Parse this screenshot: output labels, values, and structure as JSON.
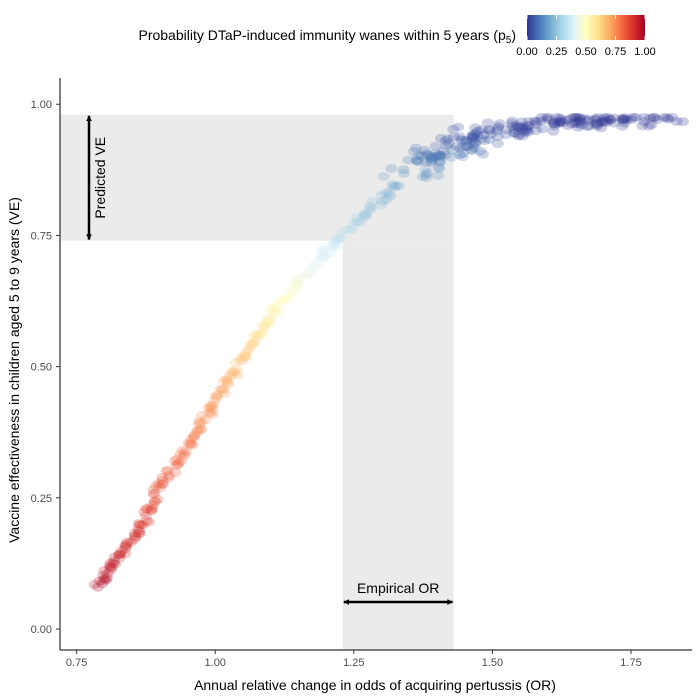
{
  "chart_data": {
    "type": "scatter",
    "title": "",
    "xlabel": "Annual relative change in odds of acquiring pertussis (OR)",
    "ylabel": "Vaccine effectiveness in children aged 5 to 9 years (VE)",
    "xlim": [
      0.72,
      1.86
    ],
    "ylim": [
      -0.04,
      1.05
    ],
    "x_ticks": [
      0.75,
      1.0,
      1.25,
      1.5,
      1.75
    ],
    "x_tick_labels": [
      "0.75",
      "1.00",
      "1.25",
      "1.50",
      "1.75"
    ],
    "y_ticks": [
      0.0,
      0.25,
      0.5,
      0.75,
      1.0
    ],
    "y_tick_labels": [
      "0.00",
      "0.25",
      "0.50",
      "0.75",
      "1.00"
    ],
    "grid": false,
    "legend": {
      "position": "top",
      "title_main": "Probability DTaP-induced immunity wanes within 5 years (p",
      "title_sub": "5",
      "title_close": ")",
      "scale_min": 0,
      "scale_max": 1,
      "tick_labels": [
        "0.00",
        "0.25",
        "0.50",
        "0.75",
        "1.00"
      ],
      "colors": [
        "#313695",
        "#4575b4",
        "#74add1",
        "#abd9e9",
        "#e0f3f8",
        "#ffffbf",
        "#fee090",
        "#fdae61",
        "#f46d43",
        "#d73027",
        "#a50026"
      ]
    },
    "empirical_or_range": [
      1.23,
      1.43
    ],
    "predicted_ve_range": [
      0.74,
      0.98
    ],
    "annotations": {
      "predicted": "Predicted VE",
      "empirical": "Empirical OR"
    },
    "series_curve": {
      "description_points": [
        {
          "x": 0.79,
          "y": 0.08,
          "p5": 0.98
        },
        {
          "x": 0.81,
          "y": 0.12,
          "p5": 0.95
        },
        {
          "x": 0.84,
          "y": 0.16,
          "p5": 0.92
        },
        {
          "x": 0.87,
          "y": 0.2,
          "p5": 0.9
        },
        {
          "x": 0.89,
          "y": 0.25,
          "p5": 0.86
        },
        {
          "x": 0.92,
          "y": 0.3,
          "p5": 0.83
        },
        {
          "x": 0.95,
          "y": 0.35,
          "p5": 0.8
        },
        {
          "x": 0.98,
          "y": 0.4,
          "p5": 0.76
        },
        {
          "x": 1.01,
          "y": 0.45,
          "p5": 0.73
        },
        {
          "x": 1.04,
          "y": 0.5,
          "p5": 0.68
        },
        {
          "x": 1.07,
          "y": 0.55,
          "p5": 0.62
        },
        {
          "x": 1.1,
          "y": 0.6,
          "p5": 0.55
        },
        {
          "x": 1.14,
          "y": 0.65,
          "p5": 0.48
        },
        {
          "x": 1.18,
          "y": 0.7,
          "p5": 0.4
        },
        {
          "x": 1.23,
          "y": 0.75,
          "p5": 0.32
        },
        {
          "x": 1.28,
          "y": 0.8,
          "p5": 0.25
        },
        {
          "x": 1.33,
          "y": 0.85,
          "p5": 0.18
        },
        {
          "x": 1.38,
          "y": 0.89,
          "p5": 0.12
        },
        {
          "x": 1.43,
          "y": 0.92,
          "p5": 0.07
        },
        {
          "x": 1.5,
          "y": 0.95,
          "p5": 0.03
        },
        {
          "x": 1.6,
          "y": 0.965,
          "p5": 0.01
        },
        {
          "x": 1.7,
          "y": 0.97,
          "p5": 0.0
        },
        {
          "x": 1.8,
          "y": 0.97,
          "p5": 0.0
        }
      ]
    }
  }
}
